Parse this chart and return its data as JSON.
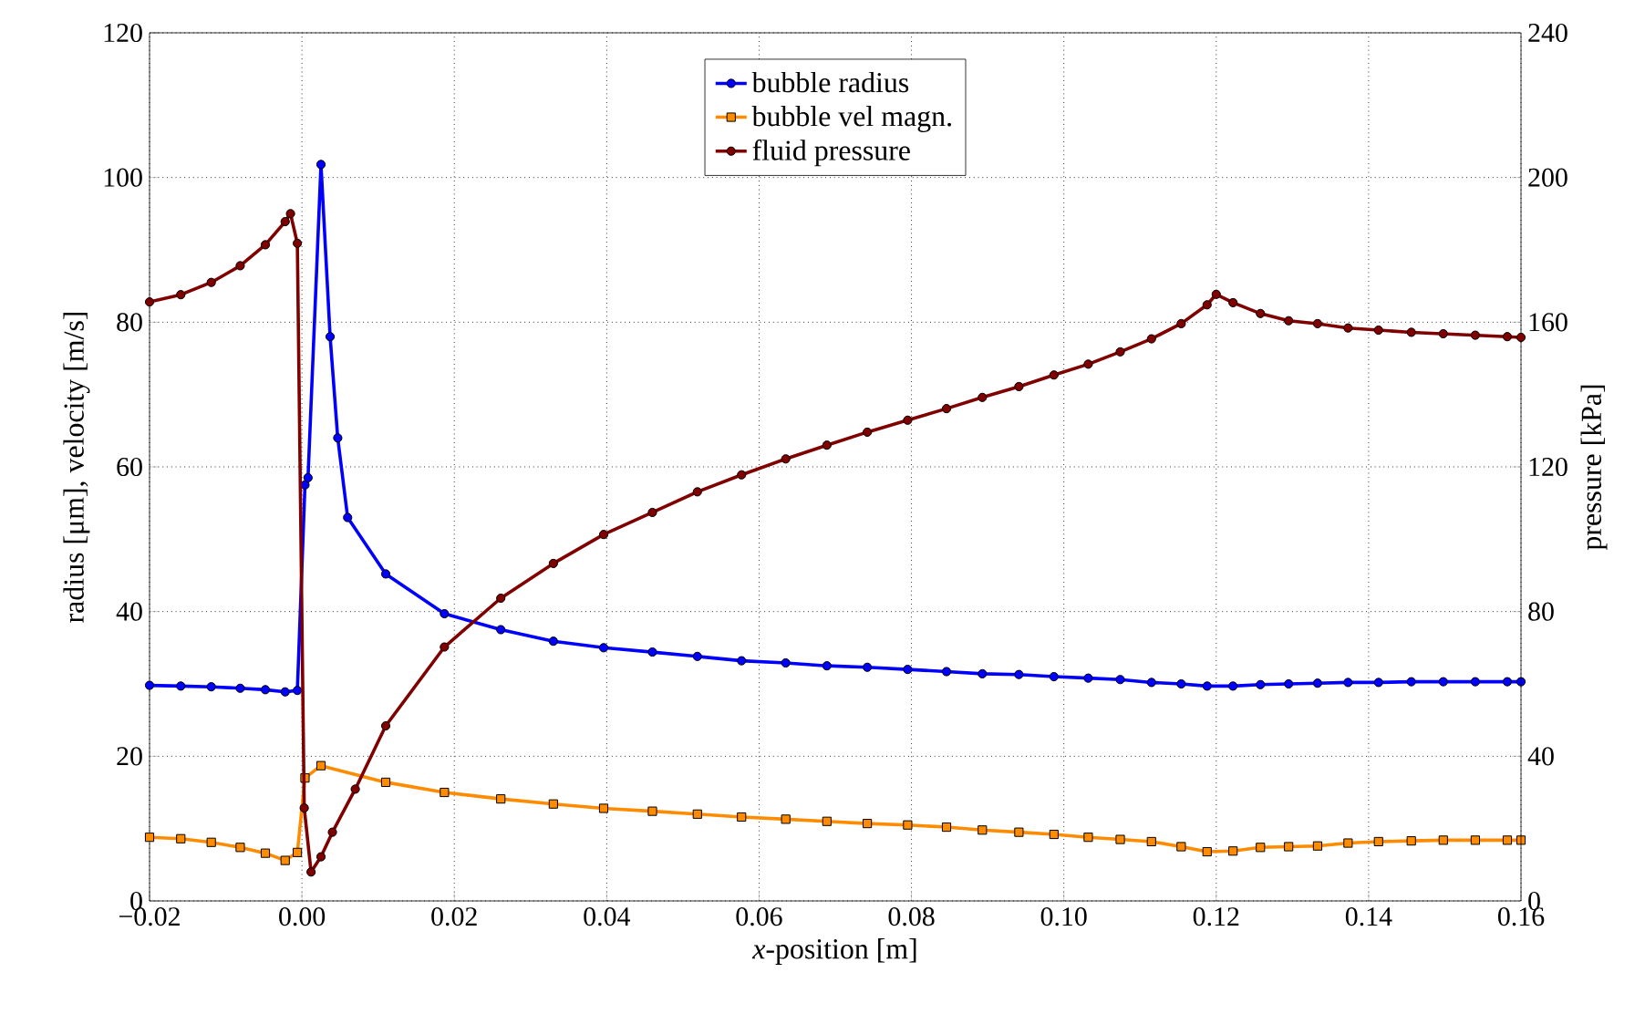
{
  "chart_data": {
    "type": "line",
    "xlabel": "*x*-position [m]",
    "ylabel": "radius [μm], velocity [m/s]",
    "y2label": "pressure [kPa]",
    "xlim": [
      -0.02,
      0.16
    ],
    "xticks": [
      {
        "value": -0.02,
        "label": "−0.02"
      },
      {
        "value": 0,
        "label": "0.00"
      },
      {
        "value": 0.02,
        "label": "0.02"
      },
      {
        "value": 0.04,
        "label": "0.04"
      },
      {
        "value": 0.06,
        "label": "0.06"
      },
      {
        "value": 0.08,
        "label": "0.08"
      },
      {
        "value": 0.1,
        "label": "0.10"
      },
      {
        "value": 0.12,
        "label": "0.12"
      },
      {
        "value": 0.14,
        "label": "0.14"
      },
      {
        "value": 0.16,
        "label": "0.16"
      }
    ],
    "ylim": [
      0,
      120
    ],
    "yticks": [
      0,
      20,
      40,
      60,
      80,
      100,
      120
    ],
    "y2lim": [
      0,
      240
    ],
    "y2ticks": [
      0,
      40,
      80,
      120,
      160,
      200,
      240
    ],
    "grid": true,
    "legend": "top",
    "line_style": "solid",
    "series": [
      {
        "name": "bubble radius",
        "color": "#0000ff",
        "marker": "circle",
        "x": [
          -0.02,
          -0.0159,
          -0.0119,
          -0.0081,
          -0.0048,
          -0.0022,
          -0.0006,
          0.0004,
          0.0008,
          0.0025,
          0.0037,
          0.0047,
          0.006,
          0.011,
          0.0187,
          0.0261,
          0.033,
          0.0396,
          0.046,
          0.0519,
          0.0577,
          0.0635,
          0.0689,
          0.0742,
          0.0795,
          0.0846,
          0.0893,
          0.0941,
          0.0987,
          0.1032,
          0.1074,
          0.1115,
          0.1154,
          0.1188,
          0.1222,
          0.1258,
          0.1295,
          0.1333,
          0.1373,
          0.1413,
          0.1456,
          0.1498,
          0.154,
          0.1582,
          0.16
        ],
        "values": [
          29.8,
          29.7,
          29.6,
          29.4,
          29.2,
          28.9,
          29.1,
          57.5,
          58.5,
          101.8,
          78,
          64,
          53,
          45.2,
          39.7,
          37.5,
          35.9,
          35.0,
          34.4,
          33.8,
          33.2,
          32.9,
          32.5,
          32.3,
          32.0,
          31.7,
          31.4,
          31.3,
          31.0,
          30.8,
          30.6,
          30.2,
          30.0,
          29.7,
          29.7,
          29.9,
          30.0,
          30.1,
          30.2,
          30.2,
          30.3,
          30.3,
          30.3,
          30.3,
          30.3
        ]
      },
      {
        "name": "bubble vel magn.",
        "color": "#ff8c00",
        "marker": "square",
        "x": [
          -0.02,
          -0.0159,
          -0.0119,
          -0.0081,
          -0.0048,
          -0.0022,
          -0.0006,
          0.0004,
          0.0025,
          0.011,
          0.0187,
          0.0261,
          0.033,
          0.0396,
          0.046,
          0.0519,
          0.0577,
          0.0635,
          0.0689,
          0.0742,
          0.0795,
          0.0846,
          0.0893,
          0.0941,
          0.0987,
          0.1032,
          0.1074,
          0.1115,
          0.1154,
          0.1188,
          0.1222,
          0.1258,
          0.1295,
          0.1333,
          0.1373,
          0.1413,
          0.1456,
          0.1498,
          0.154,
          0.1582,
          0.16
        ],
        "values": [
          8.8,
          8.6,
          8.1,
          7.4,
          6.6,
          5.6,
          6.7,
          17,
          18.7,
          16.4,
          15.0,
          14.1,
          13.4,
          12.8,
          12.4,
          12.0,
          11.6,
          11.3,
          11.0,
          10.7,
          10.5,
          10.2,
          9.8,
          9.5,
          9.2,
          8.8,
          8.5,
          8.2,
          7.5,
          6.8,
          6.9,
          7.4,
          7.5,
          7.6,
          8.0,
          8.2,
          8.3,
          8.4,
          8.4,
          8.4,
          8.4
        ]
      },
      {
        "name": "fluid pressure",
        "color": "#800000",
        "marker": "circle",
        "axis": "y2",
        "x": [
          -0.02,
          -0.0159,
          -0.0119,
          -0.0081,
          -0.0048,
          -0.0022,
          -0.0015,
          -0.0006,
          0.0003,
          0.0012,
          0.0025,
          0.004,
          0.007,
          0.011,
          0.0187,
          0.0261,
          0.033,
          0.0396,
          0.046,
          0.0519,
          0.0577,
          0.0635,
          0.0689,
          0.0742,
          0.0795,
          0.0846,
          0.0893,
          0.0941,
          0.0987,
          0.1032,
          0.1074,
          0.1115,
          0.1154,
          0.1188,
          0.12,
          0.1222,
          0.1258,
          0.1295,
          0.1333,
          0.1373,
          0.1413,
          0.1456,
          0.1498,
          0.154,
          0.1582,
          0.16
        ],
        "values": [
          165.6,
          167.6,
          171,
          175.6,
          181.4,
          187.8,
          190,
          181.8,
          25.7,
          8,
          12.2,
          19,
          30.9,
          48.4,
          70.2,
          83.7,
          93.3,
          101.3,
          107.4,
          113.1,
          117.8,
          122.2,
          126.0,
          129.6,
          132.9,
          136.1,
          139.2,
          142.2,
          145.4,
          148.4,
          151.8,
          155.4,
          159.6,
          164.8,
          167.7,
          165.4,
          162.4,
          160.4,
          159.6,
          158.4,
          157.8,
          157.2,
          156.8,
          156.4,
          156.0,
          155.8
        ]
      }
    ]
  }
}
